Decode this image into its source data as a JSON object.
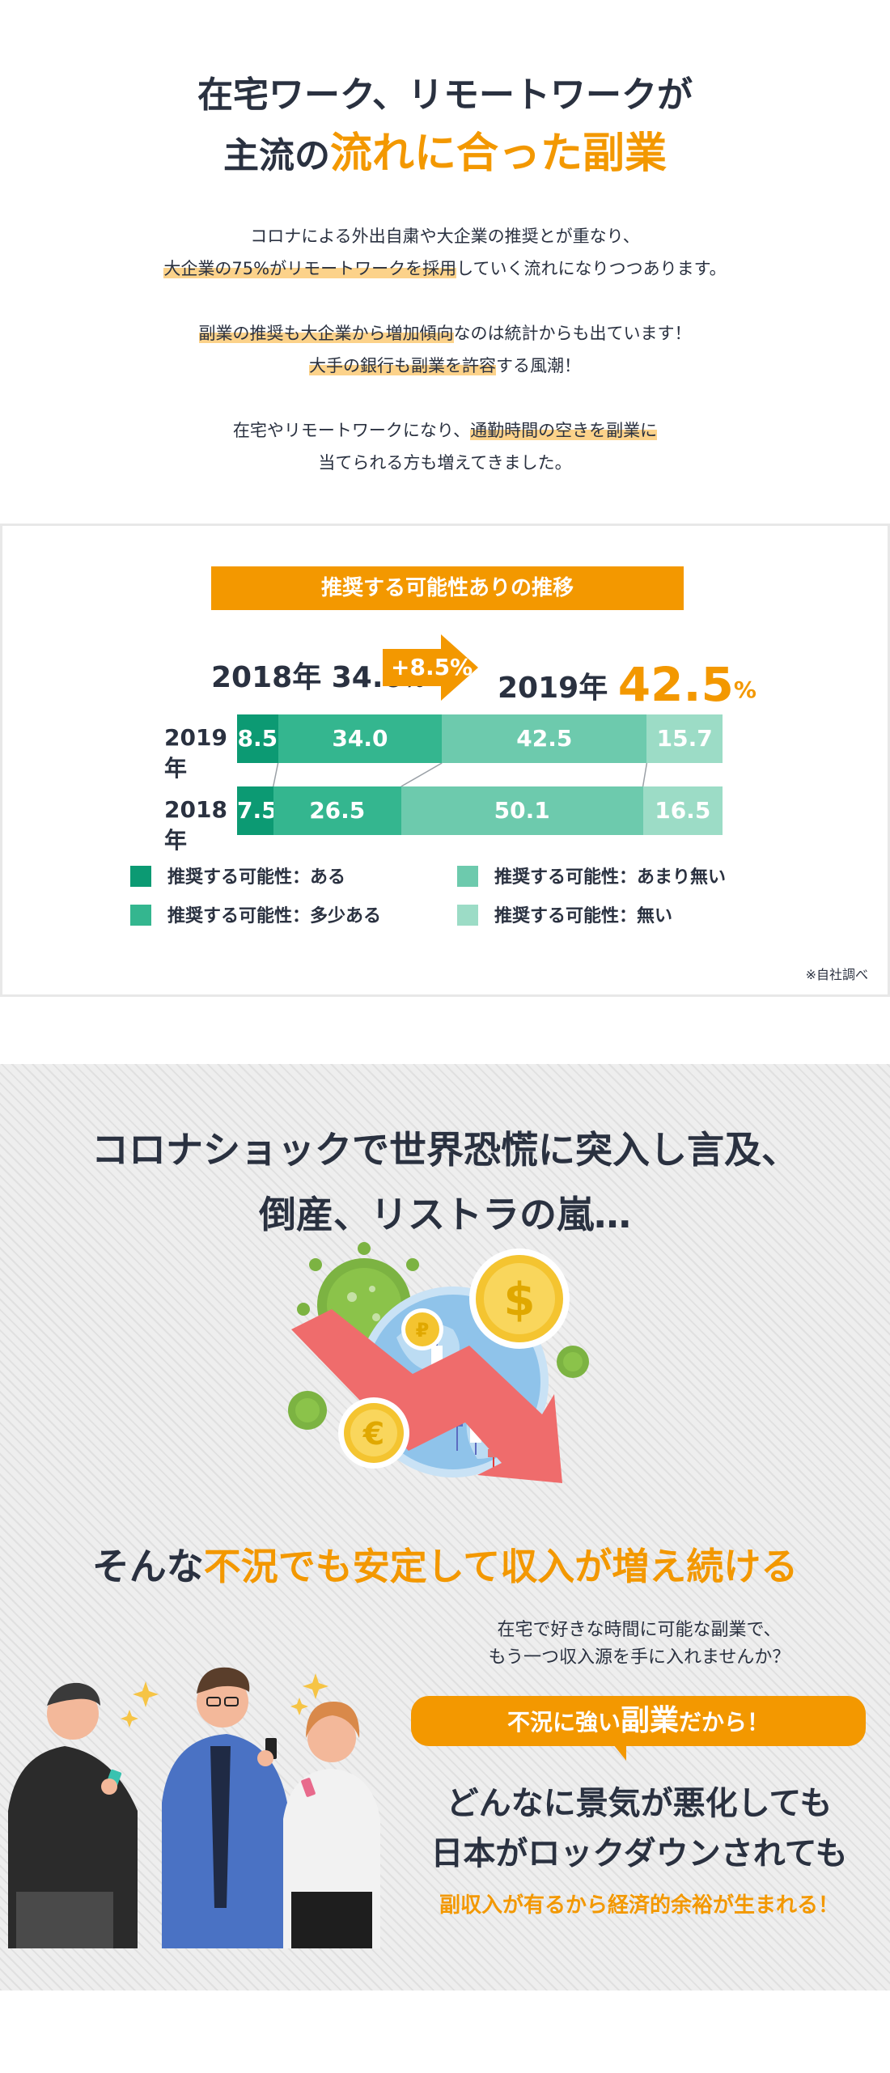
{
  "hero": {
    "title_line1": "在宅ワーク、リモートワークが",
    "title_line2_prefix": "主流の",
    "title_line2_accent": "流れに合った副業"
  },
  "intro": {
    "p1_line1": "コロナによる外出自粛や大企業の推奨とが重なり、",
    "p1_line2_hl": "大企業の75%がリモートワークを採用",
    "p1_line2_rest": "していく流れになりつつあります。",
    "p2_line1_hl": "副業の推奨も大企業から増加傾向",
    "p2_line1_rest": "なのは統計からも出ています！",
    "p2_line2_hl": "大手の銀行も副業を許容",
    "p2_line2_rest": "する風潮！",
    "p3_line1_prefix": "在宅やリモートワークになり、",
    "p3_line1_hl": "通勤時間の空きを副業に",
    "p3_line2": "当てられる方も増えてきました。"
  },
  "chart_card": {
    "title": "推奨する可能性ありの推移",
    "cmp_2018_label": "2018年",
    "cmp_2018_value": "34.0",
    "cmp_2018_pct": "%",
    "cmp_change": "+8.5%",
    "cmp_2019_label": "2019年",
    "cmp_2019_value": "42.5",
    "cmp_2019_pct": "%",
    "note": "※自社調べ"
  },
  "chart_data": {
    "type": "bar",
    "orientation": "horizontal-stacked-100",
    "categories": [
      "2019年",
      "2018年"
    ],
    "series": [
      {
        "name": "推奨する可能性：ある",
        "values": [
          8.5,
          7.5
        ],
        "color": "#0c9a73"
      },
      {
        "name": "推奨する可能性：多少ある",
        "values": [
          34.0,
          26.5
        ],
        "color": "#34b68f"
      },
      {
        "name": "推奨する可能性：あまり無い",
        "values": [
          42.5,
          50.1
        ],
        "color": "#6dcaad"
      },
      {
        "name": "推奨する可能性：無い",
        "values": [
          15.7,
          16.5
        ],
        "color": "#9cdcc6"
      }
    ],
    "data_labels": [
      [
        "8.5",
        "34.0",
        "42.5",
        "15.7"
      ],
      [
        "7.5",
        "26.5",
        "50.1",
        "16.5"
      ]
    ],
    "legend_position": "bottom",
    "xlim": [
      0,
      100
    ]
  },
  "section2": {
    "title_line1": "コロナショックで世界恐慌に突入し言及、",
    "title_line2": "倒産、リストラの嵐…",
    "sub_prefix": "そんな",
    "sub_accent": "不況でも安定して収入が増え続ける",
    "lead_line1": "在宅で好きな時間に可能な副業で、",
    "lead_line2": "もう一つ収入源を手に入れませんか？",
    "bubble_prefix": "不況に強い",
    "bubble_big": "副業",
    "bubble_suffix": "だから！",
    "big_line1": "どんなに景気が悪化しても",
    "big_line2": "日本がロックダウンされても",
    "accent_line": "副収入が有るから経済的余裕が生まれる！"
  },
  "colors": {
    "accent": "#f39800",
    "text": "#2a3140",
    "highlight": "#fcd28a"
  },
  "icons": [
    "dollar-coin-icon",
    "euro-coin-icon",
    "ruble-coin-icon",
    "virus-icon",
    "globe-icon",
    "down-arrow-icon",
    "sparkle-icon"
  ]
}
